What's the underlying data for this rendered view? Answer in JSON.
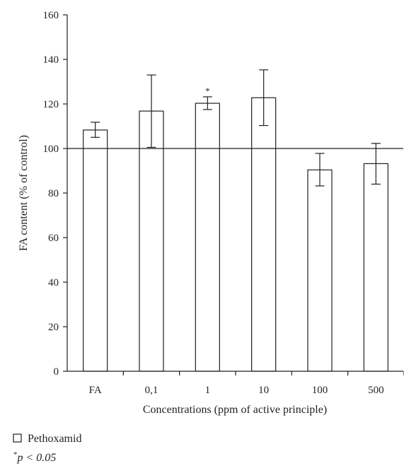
{
  "chart_data": {
    "type": "bar",
    "categories": [
      "FA",
      "0,1",
      "1",
      "10",
      "100",
      "500"
    ],
    "series": [
      {
        "name": "Pethoxamid",
        "values": [
          108.3,
          116.8,
          120.3,
          122.8,
          90.4,
          93.2
        ],
        "error_low": [
          105.0,
          100.5,
          117.5,
          110.3,
          83.2,
          84.0
        ],
        "error_high": [
          111.8,
          133.0,
          123.2,
          135.3,
          97.8,
          102.3
        ]
      }
    ],
    "significant": [
      false,
      false,
      true,
      false,
      false,
      false
    ],
    "significance_marker": "*",
    "reference_line": 100,
    "ylim": [
      0,
      160
    ],
    "yticks": [
      0,
      20,
      40,
      60,
      80,
      100,
      120,
      140,
      160
    ],
    "xlabel": "Concentrations (ppm of active principle)",
    "ylabel": "FA content (% of control)",
    "legend": {
      "entries": [
        "Pethoxamid"
      ],
      "note_star": "*",
      "note_text": "p < 0.05",
      "placement": "bottom-left"
    }
  }
}
